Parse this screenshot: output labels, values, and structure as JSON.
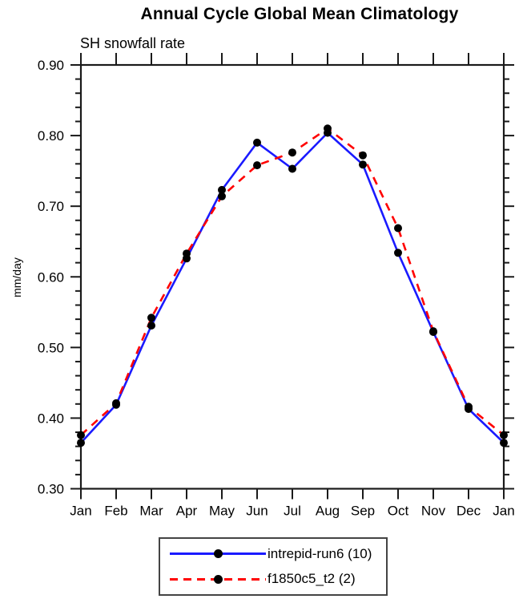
{
  "chart_data": {
    "type": "line",
    "title": "Annual Cycle Global Mean Climatology",
    "subtitle": "SH snowfall rate",
    "ylabel": "mm/day",
    "xlabel": "",
    "categories": [
      "Jan",
      "Feb",
      "Mar",
      "Apr",
      "May",
      "Jun",
      "Jul",
      "Aug",
      "Sep",
      "Oct",
      "Nov",
      "Dec",
      "Jan"
    ],
    "ylim": [
      0.3,
      0.9
    ],
    "ytick_major_step": 0.1,
    "ytick_minor_step": 0.02,
    "ytick_labels": [
      "0.30",
      "0.40",
      "0.50",
      "0.60",
      "0.70",
      "0.80",
      "0.90"
    ],
    "grid": false,
    "legend_position": "bottom-center",
    "marker": {
      "shape": "circle",
      "color": "#000000"
    },
    "frame_color": "#1a1a1a",
    "series": [
      {
        "name": "intrepid-run6 (10)",
        "color": "#1a1aff",
        "line_style": "solid",
        "values": [
          0.365,
          0.419,
          0.531,
          0.626,
          0.723,
          0.79,
          0.753,
          0.804,
          0.759,
          0.634,
          0.522,
          0.413,
          0.365
        ]
      },
      {
        "name": "f1850c5_t2 (2)",
        "color": "#ff0000",
        "line_style": "dashed",
        "values": [
          0.376,
          0.421,
          0.542,
          0.633,
          0.714,
          0.758,
          0.776,
          0.81,
          0.772,
          0.669,
          0.523,
          0.416,
          0.376
        ]
      }
    ]
  }
}
